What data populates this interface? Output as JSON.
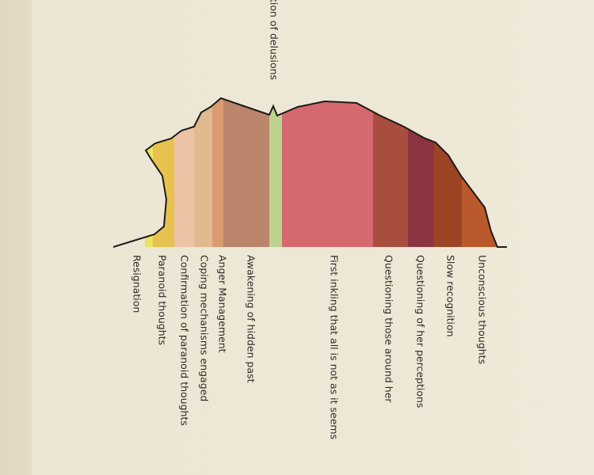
{
  "bands": [
    {
      "label": "Resignation",
      "color": "#ece45e"
    },
    {
      "label": "Paranoid thoughts",
      "color": "#e7c24e"
    },
    {
      "label": "Confirmation of paranoid thoughts",
      "color": "#ecc3a4"
    },
    {
      "label": "Coping mechanisms engaged",
      "color": "#e0b98e"
    },
    {
      "label": "Anger Management",
      "color": "#d99b72"
    },
    {
      "label": "Awakening of hidden past",
      "color": "#ba856b"
    },
    {
      "label": "tion of delusions",
      "color": "#bdd28f"
    },
    {
      "label": "First inkling that all is not as it seems",
      "color": "#d5696f"
    },
    {
      "label": "Questioning those around her",
      "color": "#a94d3f"
    },
    {
      "label": "Questioning of her perceptions",
      "color": "#8c3441"
    },
    {
      "label": "Slow recognition",
      "color": "#9c4525"
    },
    {
      "label": "Unconscious thoughts",
      "color": "#ba592b"
    }
  ]
}
